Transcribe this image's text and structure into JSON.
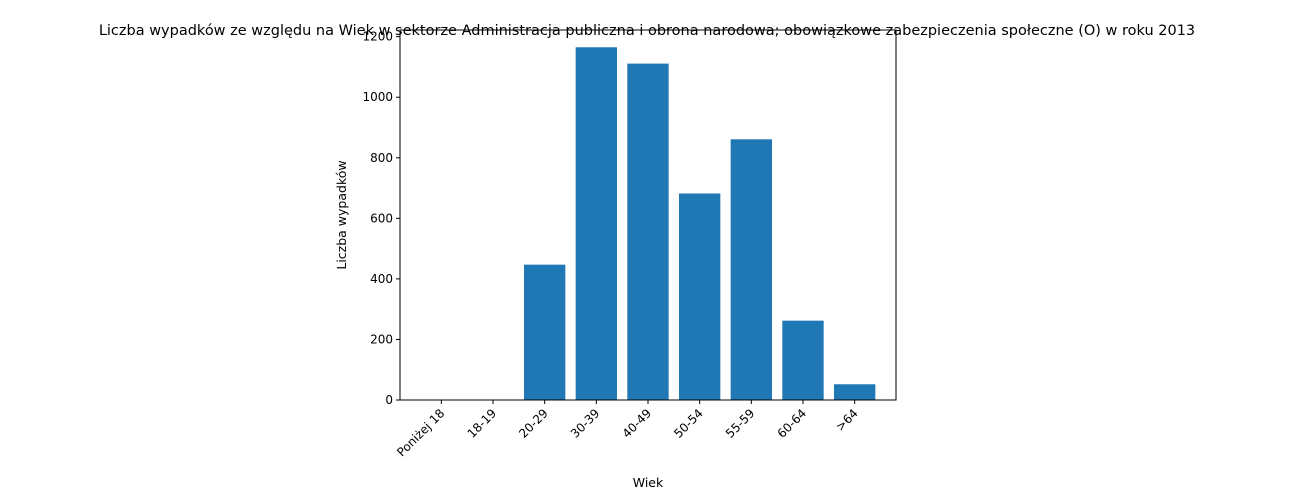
{
  "chart_data": {
    "type": "bar",
    "title": "Liczba wypadków ze względu na Wiek w sektorze Administracja publiczna i obrona narodowa; obowiązkowe zabezpieczenia społeczne  (O)  w roku 2013",
    "xlabel": "Wiek",
    "ylabel": "Liczba wypadków",
    "categories": [
      "Poniżej 18",
      "18-19",
      "20-29",
      "30-39",
      "40-49",
      "50-54",
      "55-59",
      "60-64",
      ">64"
    ],
    "values": [
      0,
      0,
      447,
      1165,
      1111,
      682,
      861,
      262,
      52
    ],
    "ylim": [
      0,
      1222
    ],
    "yticks": [
      0,
      200,
      400,
      600,
      800,
      1000,
      1200
    ],
    "bar_color": "#1f77b4",
    "grid": false,
    "legend": "none"
  }
}
